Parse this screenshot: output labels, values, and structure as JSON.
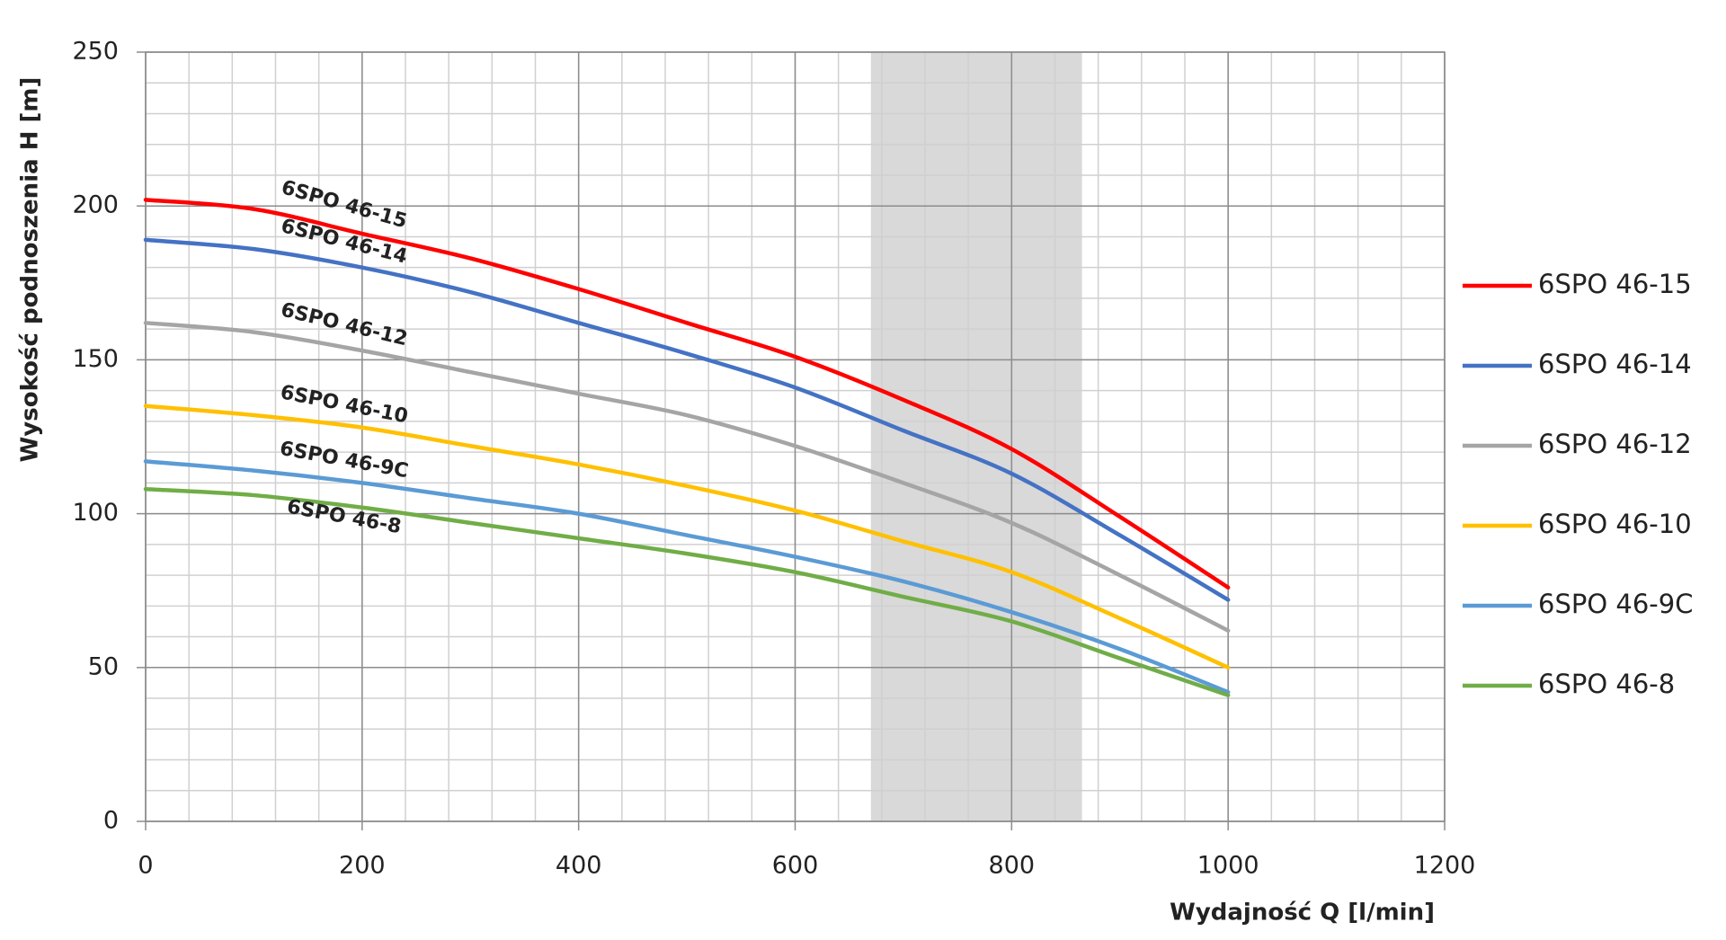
{
  "chart_data": {
    "type": "line",
    "x_label": "Wydajność Q [l/min]",
    "y_label": "Wysokość podnoszenia H [m]",
    "x": [
      0,
      100,
      200,
      300,
      400,
      500,
      600,
      700,
      800,
      900,
      1000
    ],
    "series": [
      {
        "name": "6SPO 46-15",
        "color": "#ff0000",
        "values": [
          202,
          199,
          191,
          183,
          173,
          162,
          151,
          137,
          121,
          99,
          76
        ]
      },
      {
        "name": "6SPO 46-14",
        "color": "#4472c4",
        "values": [
          189,
          186,
          180,
          172,
          162,
          152,
          141,
          127,
          113,
          93,
          72
        ]
      },
      {
        "name": "6SPO 46-12",
        "color": "#a5a5a5",
        "values": [
          162,
          159,
          153,
          146,
          139,
          132,
          122,
          110,
          97,
          80,
          62
        ]
      },
      {
        "name": "6SPO 46-10",
        "color": "#ffc000",
        "values": [
          135,
          132,
          128,
          122,
          116,
          109,
          101,
          91,
          81,
          66,
          50
        ]
      },
      {
        "name": "6SPO 46-9C",
        "color": "#5b9bd5",
        "values": [
          117,
          114,
          110,
          105,
          100,
          93,
          86,
          78,
          68,
          56,
          42
        ]
      },
      {
        "name": "6SPO 46-8",
        "color": "#70ad47",
        "values": [
          108,
          106,
          102,
          97,
          92,
          87,
          81,
          73,
          65,
          53,
          41
        ]
      }
    ],
    "xlim": [
      0,
      1200
    ],
    "ylim": [
      0,
      250
    ],
    "xticks": [
      0,
      200,
      400,
      600,
      800,
      1000,
      1200
    ],
    "yticks": [
      0,
      50,
      100,
      150,
      200,
      250
    ],
    "minor_grid": {
      "x": 40,
      "y": 10
    },
    "shaded_range": [
      670,
      865
    ],
    "grid": true,
    "legend": "right"
  }
}
